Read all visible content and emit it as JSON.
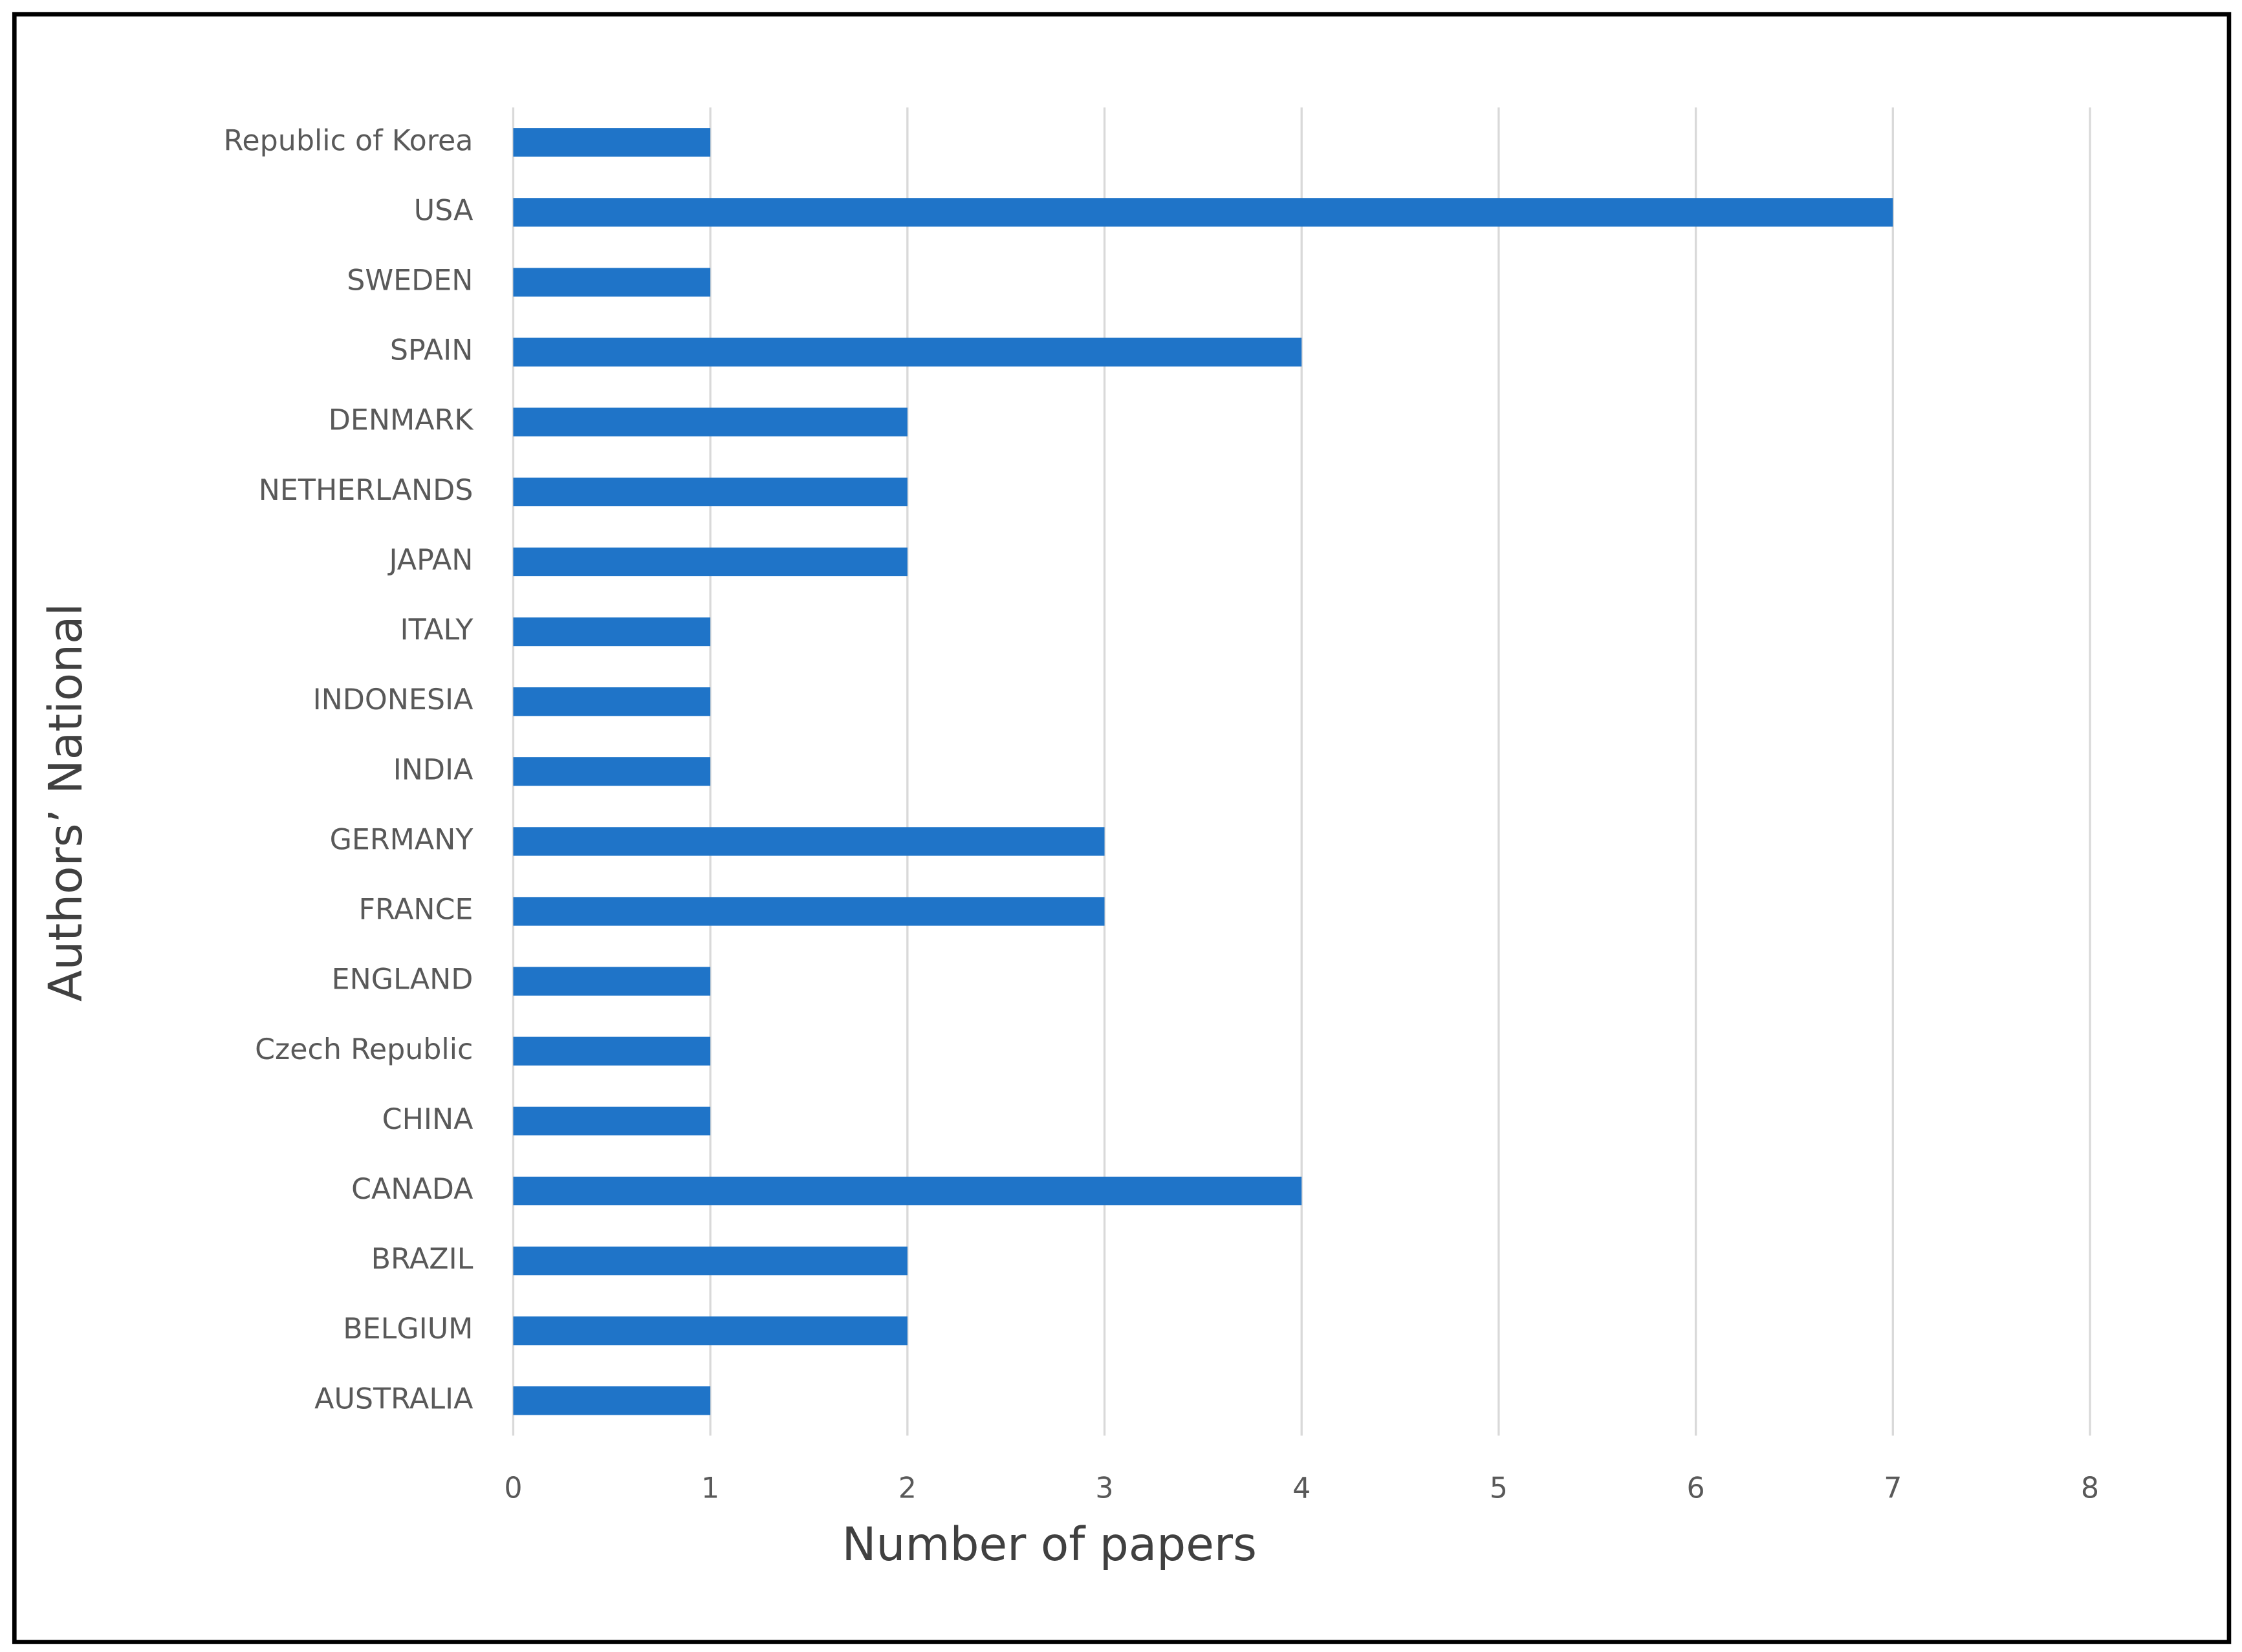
{
  "chart_data": {
    "type": "bar",
    "orientation": "horizontal",
    "x_label": "Number of  papers",
    "y_label": "Authors’ National",
    "categories": [
      "Republic of Korea",
      "USA",
      "SWEDEN",
      "SPAIN",
      "DENMARK",
      "NETHERLANDS",
      "JAPAN",
      "ITALY",
      "INDONESIA",
      "INDIA",
      "GERMANY",
      "FRANCE",
      "ENGLAND",
      "Czech Republic",
      "CHINA",
      "CANADA",
      "BRAZIL",
      "BELGIUM",
      "AUSTRALIA"
    ],
    "values": [
      1,
      7,
      1,
      4,
      2,
      2,
      2,
      1,
      1,
      1,
      3,
      3,
      1,
      1,
      1,
      4,
      2,
      2,
      1
    ],
    "color": "#1f74c8",
    "xlim": [
      0,
      8
    ],
    "xticks": [
      0,
      1,
      2,
      3,
      4,
      5,
      6,
      7,
      8
    ],
    "grid": true
  }
}
